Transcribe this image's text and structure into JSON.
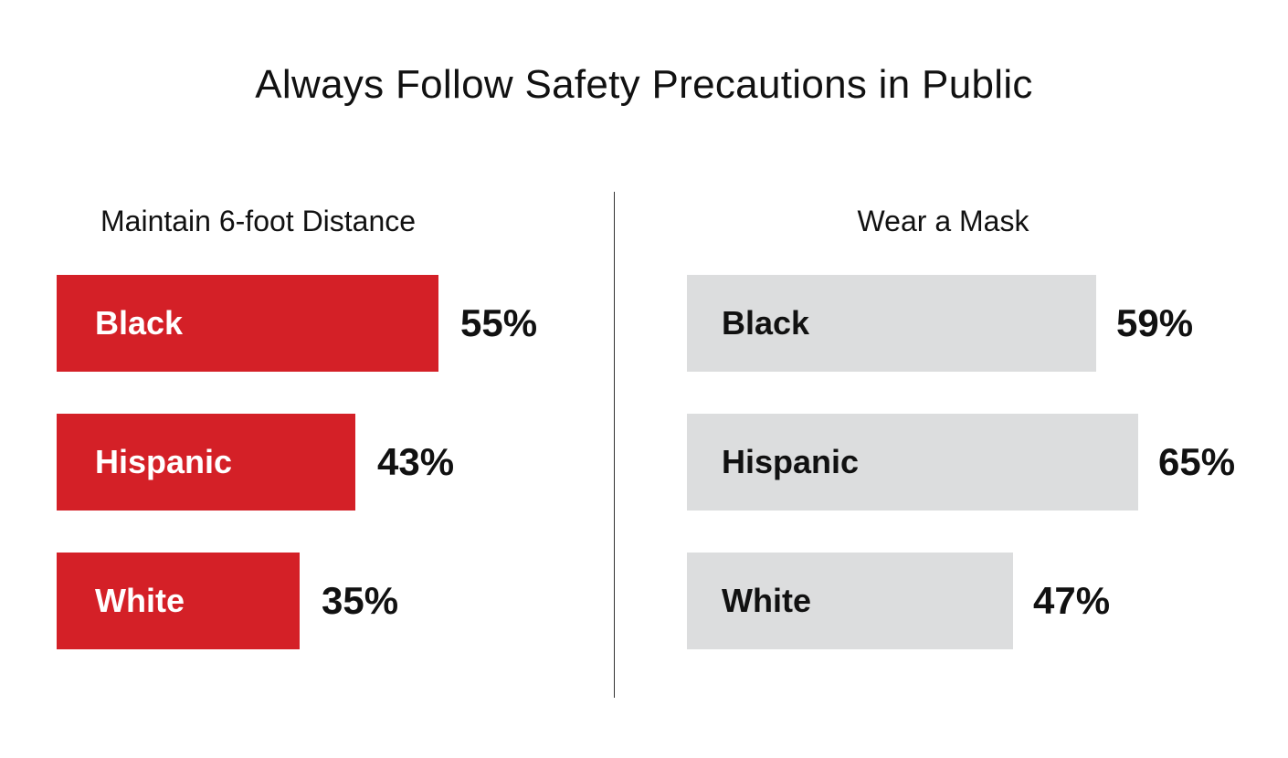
{
  "title": "Always Follow Safety Precautions in Public",
  "chart_data": [
    {
      "type": "bar",
      "orientation": "horizontal",
      "title": "Maintain 6-foot Distance",
      "categories": [
        "Black",
        "Hispanic",
        "White"
      ],
      "values": [
        55,
        43,
        35
      ],
      "value_labels": [
        "55%",
        "43%",
        "35%"
      ],
      "unit": "%",
      "bar_color": "#d42027",
      "label_color": "#ffffff"
    },
    {
      "type": "bar",
      "orientation": "horizontal",
      "title": "Wear a Mask",
      "categories": [
        "Black",
        "Hispanic",
        "White"
      ],
      "values": [
        59,
        65,
        47
      ],
      "value_labels": [
        "59%",
        "65%",
        "47%"
      ],
      "unit": "%",
      "bar_color": "#dcddde",
      "label_color": "#111111"
    }
  ]
}
